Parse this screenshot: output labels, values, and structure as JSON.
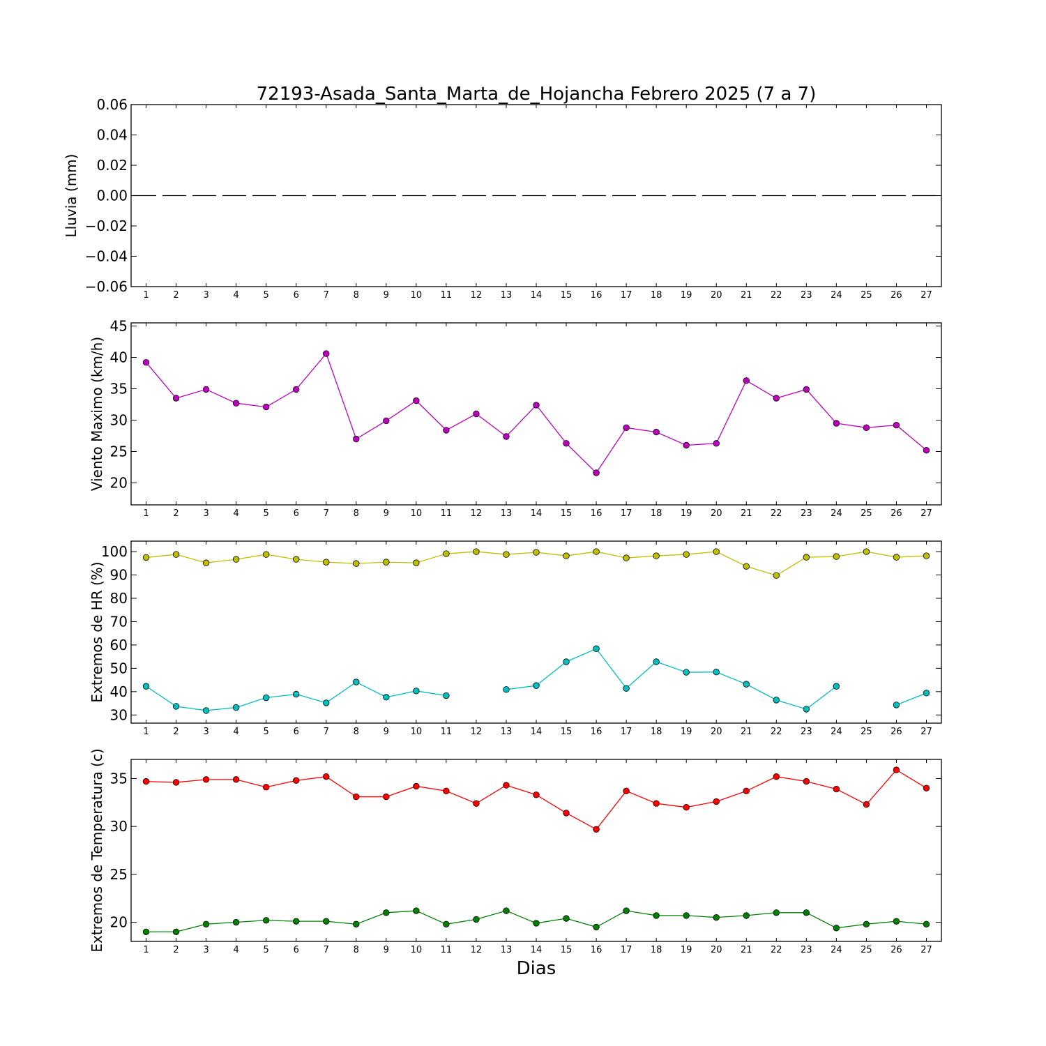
{
  "title": "72193-Asada_Santa_Marta_de_Hojancha Febrero 2025  (7 a 7)",
  "xlabel": "Dias",
  "colors": {
    "rain": "#000000",
    "wind": "#bf00bf",
    "hr_max": "#bfbf00",
    "hr_min": "#00bfbf",
    "temp_max": "#ff0000",
    "temp_min": "#008000"
  },
  "chart_data": [
    {
      "type": "line",
      "ylabel": "Lluvia (mm)",
      "xlim": [
        0.5,
        27.5
      ],
      "ylim": [
        -0.06,
        0.06
      ],
      "yticks": [
        -0.06,
        -0.04,
        -0.02,
        0.0,
        0.02,
        0.04,
        0.06
      ],
      "ytick_labels": [
        "−0.06",
        "−0.04",
        "−0.02",
        "0.00",
        "0.02",
        "0.04",
        "0.06"
      ],
      "x": [
        1,
        2,
        3,
        4,
        5,
        6,
        7,
        8,
        9,
        10,
        11,
        12,
        13,
        14,
        15,
        16,
        17,
        18,
        19,
        20,
        21,
        22,
        23,
        24,
        25,
        26,
        27
      ],
      "series": [
        {
          "color_key": "rain",
          "style": "dashed",
          "markers": false,
          "values": [
            0,
            0,
            0,
            0,
            0,
            0,
            0,
            0,
            0,
            0,
            0,
            0,
            0,
            0,
            0,
            0,
            0,
            0,
            0,
            0,
            0,
            0,
            0,
            0,
            0,
            0,
            0
          ]
        }
      ]
    },
    {
      "type": "line",
      "ylabel": "Viento Maximo (km/h)",
      "xlim": [
        0.5,
        27.5
      ],
      "ylim": [
        16.5,
        45.5
      ],
      "yticks": [
        20,
        25,
        30,
        35,
        40,
        45
      ],
      "ytick_labels": [
        "20",
        "25",
        "30",
        "35",
        "40",
        "45"
      ],
      "x": [
        1,
        2,
        3,
        4,
        5,
        6,
        7,
        8,
        9,
        10,
        11,
        12,
        13,
        14,
        15,
        16,
        17,
        18,
        19,
        20,
        21,
        22,
        23,
        24,
        25,
        26,
        27
      ],
      "series": [
        {
          "color_key": "wind",
          "style": "solid",
          "markers": true,
          "values": [
            39.2,
            33.5,
            34.9,
            32.7,
            32.1,
            34.9,
            40.6,
            27.0,
            29.9,
            33.1,
            28.4,
            31.0,
            27.4,
            32.4,
            26.3,
            21.6,
            28.8,
            28.1,
            26.0,
            26.3,
            36.3,
            33.5,
            34.9,
            29.5,
            28.8,
            29.2,
            25.2
          ]
        }
      ]
    },
    {
      "type": "line",
      "ylabel": "Extremos de HR (%)",
      "xlim": [
        0.5,
        27.5
      ],
      "ylim": [
        26.5,
        104.5
      ],
      "yticks": [
        30,
        40,
        50,
        60,
        70,
        80,
        90,
        100
      ],
      "ytick_labels": [
        "30",
        "40",
        "50",
        "60",
        "70",
        "80",
        "90",
        "100"
      ],
      "x": [
        1,
        2,
        3,
        4,
        5,
        6,
        7,
        8,
        9,
        10,
        11,
        12,
        13,
        14,
        15,
        16,
        17,
        18,
        19,
        20,
        21,
        22,
        23,
        24,
        25,
        26,
        27
      ],
      "series": [
        {
          "color_key": "hr_max",
          "style": "solid",
          "markers": true,
          "values": [
            97.5,
            98.8,
            95.2,
            96.7,
            98.8,
            96.7,
            95.5,
            94.9,
            95.5,
            95.2,
            99.1,
            100,
            98.8,
            99.7,
            98.2,
            100,
            97.3,
            98.2,
            98.8,
            100,
            93.7,
            89.8,
            97.6,
            97.9,
            100,
            97.6,
            98.2
          ]
        },
        {
          "color_key": "hr_min",
          "style": "solid",
          "markers": true,
          "values": [
            42.3,
            33.7,
            31.9,
            33.2,
            37.4,
            38.9,
            35.2,
            44.1,
            37.6,
            40.3,
            38.3,
            null,
            40.9,
            42.6,
            52.8,
            58.4,
            41.4,
            52.8,
            48.3,
            48.4,
            43.2,
            36.4,
            32.5,
            42.3,
            null,
            34.3,
            39.4
          ]
        }
      ]
    },
    {
      "type": "line",
      "ylabel": "Extremos de Temperatura (c)",
      "xlim": [
        0.5,
        27.5
      ],
      "ylim": [
        18,
        37
      ],
      "yticks": [
        20,
        25,
        30,
        35
      ],
      "ytick_labels": [
        "20",
        "25",
        "30",
        "35"
      ],
      "x": [
        1,
        2,
        3,
        4,
        5,
        6,
        7,
        8,
        9,
        10,
        11,
        12,
        13,
        14,
        15,
        16,
        17,
        18,
        19,
        20,
        21,
        22,
        23,
        24,
        25,
        26,
        27
      ],
      "series": [
        {
          "color_key": "temp_max",
          "style": "solid",
          "markers": true,
          "values": [
            34.7,
            34.6,
            34.9,
            34.9,
            34.1,
            34.8,
            35.2,
            33.1,
            33.1,
            34.2,
            33.7,
            32.4,
            34.3,
            33.3,
            31.4,
            29.7,
            33.7,
            32.4,
            32.0,
            32.6,
            33.7,
            35.2,
            34.7,
            33.9,
            32.3,
            35.9,
            34.0
          ]
        },
        {
          "color_key": "temp_min",
          "style": "solid",
          "markers": true,
          "values": [
            19.0,
            19.0,
            19.8,
            20.0,
            20.2,
            20.1,
            20.1,
            19.8,
            21.0,
            21.2,
            19.8,
            20.3,
            21.2,
            19.9,
            20.4,
            19.5,
            21.2,
            20.7,
            20.7,
            20.5,
            20.7,
            21.0,
            21.0,
            19.4,
            19.8,
            20.1,
            19.8
          ]
        }
      ]
    }
  ]
}
